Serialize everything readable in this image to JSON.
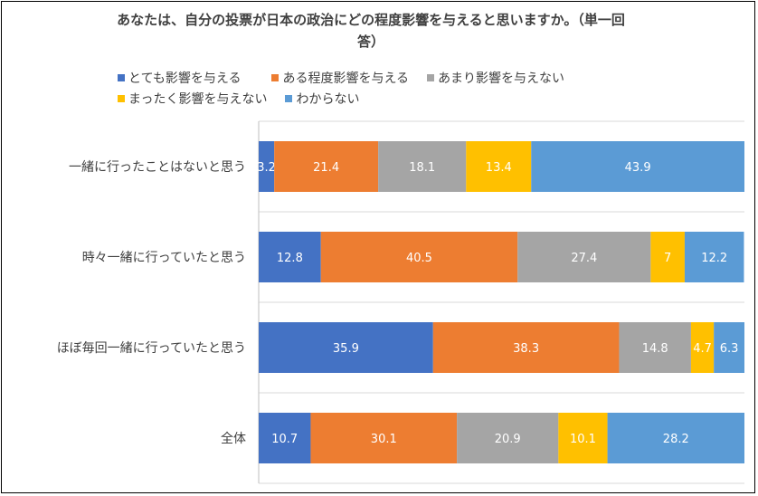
{
  "chart_data": {
    "type": "bar",
    "orientation": "horizontal",
    "stacked": true,
    "title": "あなたは、自分の投票が日本の政治にどの程度影響を与えると思いますか。（単一回答）",
    "title_lines": [
      "あなたは、自分の投票が日本の政治にどの程度影響を与えると思いますか。（単一回",
      "答）"
    ],
    "categories": [
      "一緒に行ったことはないと思う",
      "時々一緒に行っていたと思う",
      "ほぼ毎回一緒に行っていたと思う",
      "全体"
    ],
    "series": [
      {
        "name": "とても影響を与える",
        "color": "#4472C4",
        "values": [
          3.2,
          12.8,
          35.9,
          10.7
        ],
        "labels": [
          "3.2",
          "12.8",
          "35.9",
          "10.7"
        ]
      },
      {
        "name": "ある程度影響を与える",
        "color": "#ED7D31",
        "values": [
          21.4,
          40.5,
          38.3,
          30.1
        ],
        "labels": [
          "21.4",
          "40.5",
          "38.3",
          "30.1"
        ]
      },
      {
        "name": "あまり影響を与えない",
        "color": "#A5A5A5",
        "values": [
          18.1,
          27.4,
          14.8,
          20.9
        ],
        "labels": [
          "18.1",
          "27.4",
          "14.8",
          "20.9"
        ]
      },
      {
        "name": "まったく影響を与えない",
        "color": "#FFC000",
        "values": [
          13.4,
          7,
          4.7,
          10.1
        ],
        "labels": [
          "13.4",
          "7",
          "4.7",
          "10.1"
        ]
      },
      {
        "name": "わからない",
        "color": "#5B9BD5",
        "values": [
          43.9,
          12.2,
          6.3,
          28.2
        ],
        "labels": [
          "43.9",
          "12.2",
          "6.3",
          "28.2"
        ]
      }
    ],
    "xlim": [
      0,
      100
    ],
    "grid": true,
    "legend_position": "top"
  }
}
